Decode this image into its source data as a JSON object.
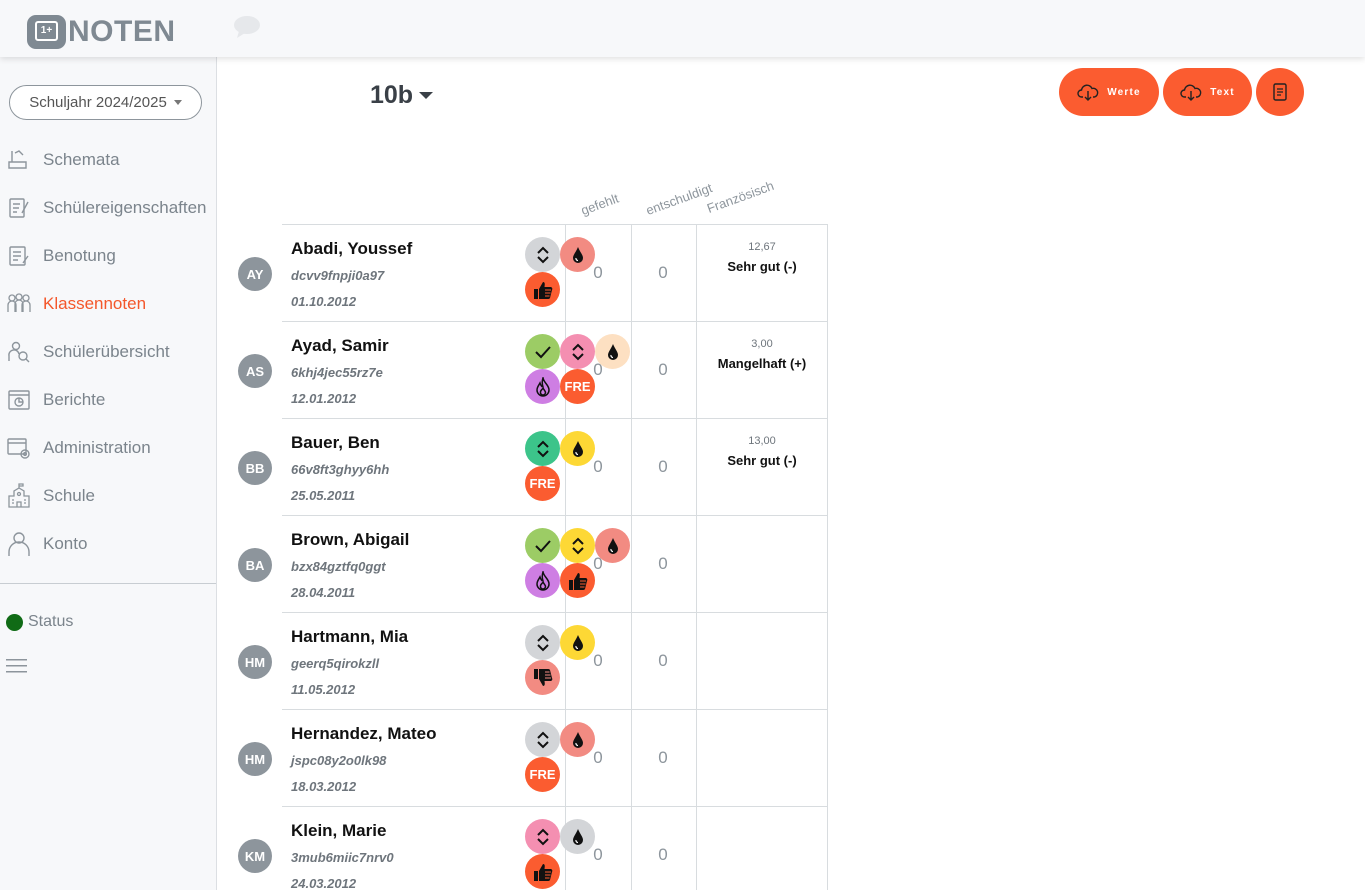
{
  "brand": {
    "logo_badge": "1+",
    "logo_text": "NOTEN"
  },
  "sidebar": {
    "year_select": "Schuljahr 2024/2025",
    "items": [
      {
        "label": "Schemata",
        "icon": "schema-icon",
        "active": false
      },
      {
        "label": "Schülereigenschaften",
        "icon": "properties-icon",
        "active": false
      },
      {
        "label": "Benotung",
        "icon": "grading-icon",
        "active": false
      },
      {
        "label": "Klassennoten",
        "icon": "class-grades-icon",
        "active": true
      },
      {
        "label": "Schülerübersicht",
        "icon": "student-search-icon",
        "active": false
      },
      {
        "label": "Berichte",
        "icon": "reports-icon",
        "active": false
      },
      {
        "label": "Administration",
        "icon": "admin-icon",
        "active": false
      },
      {
        "label": "Schule",
        "icon": "school-icon",
        "active": false
      },
      {
        "label": "Konto",
        "icon": "user-icon",
        "active": false
      }
    ],
    "status_label": "Status",
    "status_color": "#106b16"
  },
  "main": {
    "class_name": "10b",
    "buttons": {
      "werte": "Werte",
      "text": "Text"
    },
    "columns": [
      "gefehlt",
      "entschuldigt",
      "Französisch"
    ],
    "accent_color": "#fb5c30",
    "students": [
      {
        "initials": "AY",
        "name": "Abadi, Youssef",
        "code": "dcvv9fnpji0a97",
        "dob": "01.10.2012",
        "gefehlt": "0",
        "entschuldigt": "0",
        "grade_value": "12,67",
        "grade_text": "Sehr gut (-)",
        "badges": [
          {
            "type": "sort",
            "color": "#d3d5d8"
          },
          {
            "type": "drop",
            "color": "#f28b82"
          },
          {
            "type": "thumbup",
            "color": "#fb5c30"
          }
        ]
      },
      {
        "initials": "AS",
        "name": "Ayad, Samir",
        "code": "6khj4jec55rz7e",
        "dob": "12.01.2012",
        "gefehlt": "0",
        "entschuldigt": "0",
        "grade_value": "3,00",
        "grade_text": "Mangelhaft (+)",
        "badges": [
          {
            "type": "check",
            "color": "#9ccc65"
          },
          {
            "type": "sort",
            "color": "#f48fb1"
          },
          {
            "type": "drop",
            "color": "#fde0c2"
          },
          {
            "type": "flame",
            "color": "#ce7ee3"
          },
          {
            "type": "FRE",
            "color": "#fb5c30"
          }
        ]
      },
      {
        "initials": "BB",
        "name": "Bauer, Ben",
        "code": "66v8ft3ghyy6hh",
        "dob": "25.05.2011",
        "gefehlt": "0",
        "entschuldigt": "0",
        "grade_value": "13,00",
        "grade_text": "Sehr gut (-)",
        "badges": [
          {
            "type": "sort",
            "color": "#3cc48a"
          },
          {
            "type": "drop",
            "color": "#fdd835"
          },
          {
            "type": "FRE",
            "color": "#fb5c30"
          }
        ]
      },
      {
        "initials": "BA",
        "name": "Brown, Abigail",
        "code": "bzx84gztfq0ggt",
        "dob": "28.04.2011",
        "gefehlt": "0",
        "entschuldigt": "0",
        "grade_value": "",
        "grade_text": "",
        "badges": [
          {
            "type": "check",
            "color": "#9ccc65"
          },
          {
            "type": "sort",
            "color": "#fdd835"
          },
          {
            "type": "drop",
            "color": "#f28b82"
          },
          {
            "type": "flame",
            "color": "#ce7ee3"
          },
          {
            "type": "thumbup",
            "color": "#fb5c30"
          }
        ]
      },
      {
        "initials": "HM",
        "name": "Hartmann, Mia",
        "code": "geerq5qirokzll",
        "dob": "11.05.2012",
        "gefehlt": "0",
        "entschuldigt": "0",
        "grade_value": "",
        "grade_text": "",
        "badges": [
          {
            "type": "sort",
            "color": "#d3d5d8"
          },
          {
            "type": "drop",
            "color": "#fdd835"
          },
          {
            "type": "thumbdown",
            "color": "#f28b82"
          }
        ]
      },
      {
        "initials": "HM",
        "name": "Hernandez, Mateo",
        "code": "jspc08y2o0lk98",
        "dob": "18.03.2012",
        "gefehlt": "0",
        "entschuldigt": "0",
        "grade_value": "",
        "grade_text": "",
        "badges": [
          {
            "type": "sort",
            "color": "#d3d5d8"
          },
          {
            "type": "drop",
            "color": "#f28b82"
          },
          {
            "type": "FRE",
            "color": "#fb5c30"
          }
        ]
      },
      {
        "initials": "KM",
        "name": "Klein, Marie",
        "code": "3mub6miic7nrv0",
        "dob": "24.03.2012",
        "gefehlt": "0",
        "entschuldigt": "0",
        "grade_value": "",
        "grade_text": "",
        "badges": [
          {
            "type": "sort",
            "color": "#f48fb1"
          },
          {
            "type": "drop",
            "color": "#d3d5d8"
          },
          {
            "type": "thumbup",
            "color": "#fb5c30"
          }
        ]
      }
    ]
  }
}
